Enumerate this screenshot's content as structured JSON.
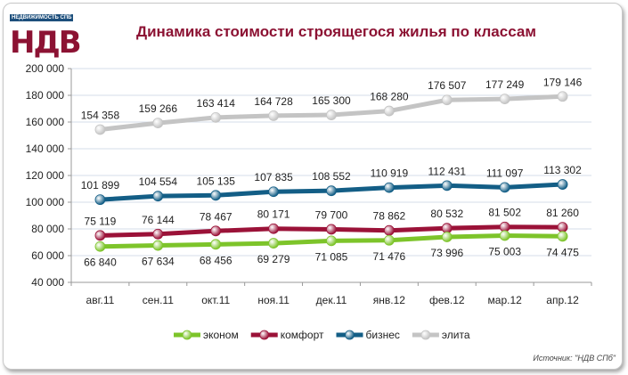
{
  "logo": {
    "top_text": "НЕДВИЖИМОСТЬ СПБ",
    "main_text": "НДВ"
  },
  "source": "Источник: \"НДВ СПб\"",
  "chart_data": {
    "type": "line",
    "title": "Динамика стоимости строящегося жилья по классам",
    "xlabel": "",
    "ylabel": "",
    "ylim": [
      40000,
      200000
    ],
    "yticks": [
      40000,
      60000,
      80000,
      100000,
      120000,
      140000,
      160000,
      180000,
      200000
    ],
    "ytick_labels": [
      "40 000",
      "60 000",
      "80 000",
      "100 000",
      "120 000",
      "140 000",
      "160 000",
      "180 000",
      "200 000"
    ],
    "categories": [
      "авг.11",
      "сен.11",
      "окт.11",
      "ноя.11",
      "дек.11",
      "янв.12",
      "фев.12",
      "мар.12",
      "апр.12"
    ],
    "grid": true,
    "legend_position": "bottom",
    "series": [
      {
        "name": "эконом",
        "color": "#7dc42a",
        "label_pos": "below",
        "values": [
          66840,
          67634,
          68456,
          69279,
          71085,
          71476,
          73996,
          75003,
          74475
        ],
        "labels": [
          "66 840",
          "67 634",
          "68 456",
          "69 279",
          "71 085",
          "71 476",
          "73 996",
          "75 003",
          "74 475"
        ]
      },
      {
        "name": "комфорт",
        "color": "#9b1238",
        "label_pos": "above",
        "values": [
          75119,
          76144,
          78467,
          80171,
          79700,
          78862,
          80532,
          81502,
          81260
        ],
        "labels": [
          "75 119",
          "76 144",
          "78 467",
          "80 171",
          "79 700",
          "78 862",
          "80 532",
          "81 502",
          "81 260"
        ]
      },
      {
        "name": "бизнес",
        "color": "#135e86",
        "label_pos": "above",
        "values": [
          101899,
          104554,
          105135,
          107835,
          108552,
          110919,
          112431,
          111097,
          113302
        ],
        "labels": [
          "101 899",
          "104 554",
          "105 135",
          "107 835",
          "108 552",
          "110 919",
          "112 431",
          "111 097",
          "113 302"
        ]
      },
      {
        "name": "элита",
        "color": "#c4c4c4",
        "label_pos": "above",
        "values": [
          154358,
          159266,
          163414,
          164728,
          165300,
          168280,
          176507,
          177249,
          179146
        ],
        "labels": [
          "154 358",
          "159 266",
          "163 414",
          "164 728",
          "165 300",
          "168 280",
          "176 507",
          "177 249",
          "179 146"
        ]
      }
    ]
  }
}
